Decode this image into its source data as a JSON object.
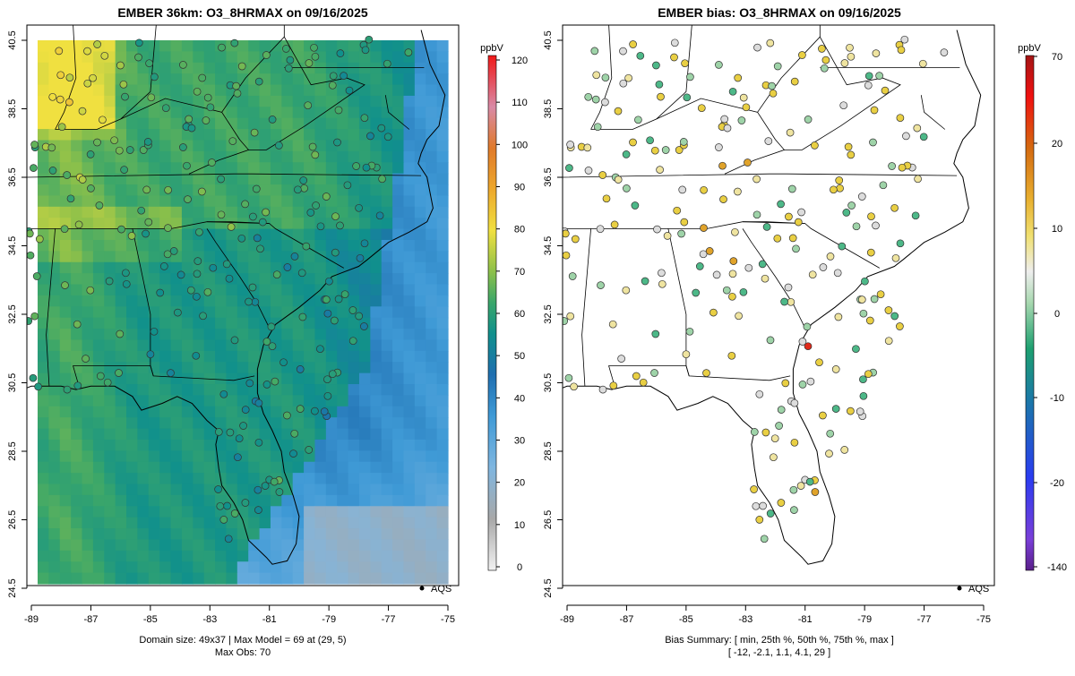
{
  "left_panel": {
    "title": "EMBER 36km: O3_8HRMAX on 09/16/2025",
    "colorbar_unit": "ppbV",
    "colorbar_ticks": [
      "0",
      "10",
      "20",
      "30",
      "40",
      "50",
      "60",
      "70",
      "80",
      "90",
      "100",
      "110",
      "120"
    ],
    "legend_label": "AQS",
    "caption_line1": "Domain size: 49x37 | Max Model = 69 at (29, 5)",
    "caption_line2": "Max Obs: 70"
  },
  "right_panel": {
    "title": "EMBER bias: O3_8HRMAX on 09/16/2025",
    "colorbar_unit": "ppbV",
    "colorbar_ticks": [
      "-140",
      "-20",
      "-10",
      "0",
      "10",
      "20",
      "70"
    ],
    "legend_label": "AQS",
    "caption_line1": "Bias Summary: [ min, 25th %, 50th %, 75th %, max ]",
    "caption_line2": "[ -12,   -2.1,   1.1,   4.1,   29 ]"
  },
  "axes": {
    "x_ticks": [
      "-89",
      "-87",
      "-85",
      "-83",
      "-81",
      "-79",
      "-77",
      "-75"
    ],
    "y_ticks": [
      "24.5",
      "26.5",
      "28.5",
      "30.5",
      "32.5",
      "34.5",
      "36.5",
      "38.5",
      "40.5"
    ]
  },
  "chart_data": [
    {
      "type": "heatmap",
      "title": "EMBER 36km: O3_8HRMAX on 09/16/2025",
      "variable": "O3_8HRMAX",
      "units": "ppbV",
      "lon_range": [
        -89.2,
        -74.8
      ],
      "lat_range": [
        24.5,
        40.9
      ],
      "color_range": [
        0,
        120
      ],
      "grid_size": "49x37",
      "max_model": 69,
      "max_obs": 70,
      "observation_network": "AQS"
    },
    {
      "type": "scatter",
      "title": "EMBER bias: O3_8HRMAX on 09/16/2025",
      "variable": "O3_8HRMAX bias",
      "units": "ppbV",
      "lon_range": [
        -89.2,
        -74.8
      ],
      "lat_range": [
        24.5,
        40.9
      ],
      "color_range": [
        -140,
        70
      ],
      "bias_summary": {
        "min": -12,
        "p25": -2.1,
        "p50": 1.1,
        "p75": 4.1,
        "max": 29
      },
      "observation_network": "AQS"
    }
  ]
}
